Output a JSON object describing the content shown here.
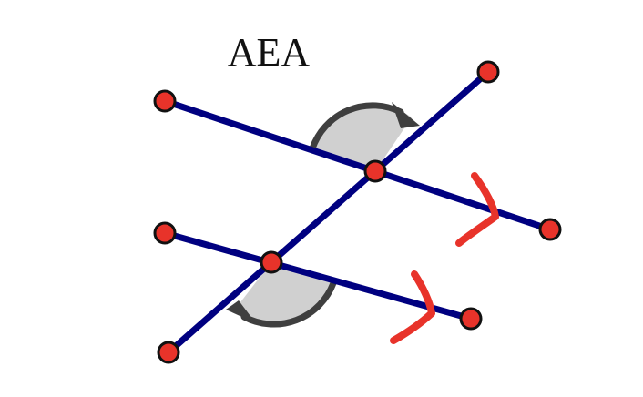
{
  "diagram": {
    "title": "AEA",
    "colors": {
      "lines": "#000080",
      "points": "#e8332a",
      "point_outline": "#111111",
      "angle_fill": "#d0d0d0",
      "angle_arc": "#3f3f3f",
      "marks": "#e8332a"
    },
    "lines": [
      {
        "name": "parallel-line-upper"
      },
      {
        "name": "parallel-line-lower"
      },
      {
        "name": "transversal-line"
      }
    ],
    "points": [
      {
        "name": "upper-line-left-endpoint"
      },
      {
        "name": "upper-line-right-endpoint"
      },
      {
        "name": "lower-line-left-endpoint"
      },
      {
        "name": "lower-line-right-endpoint"
      },
      {
        "name": "transversal-top-endpoint"
      },
      {
        "name": "transversal-bottom-endpoint"
      },
      {
        "name": "upper-intersection-point"
      },
      {
        "name": "lower-intersection-point"
      }
    ],
    "angles": [
      {
        "name": "upper-alternate-exterior-angle"
      },
      {
        "name": "lower-alternate-exterior-angle"
      }
    ],
    "parallel_marks": [
      {
        "name": "parallel-mark-upper"
      },
      {
        "name": "parallel-mark-lower"
      }
    ]
  }
}
